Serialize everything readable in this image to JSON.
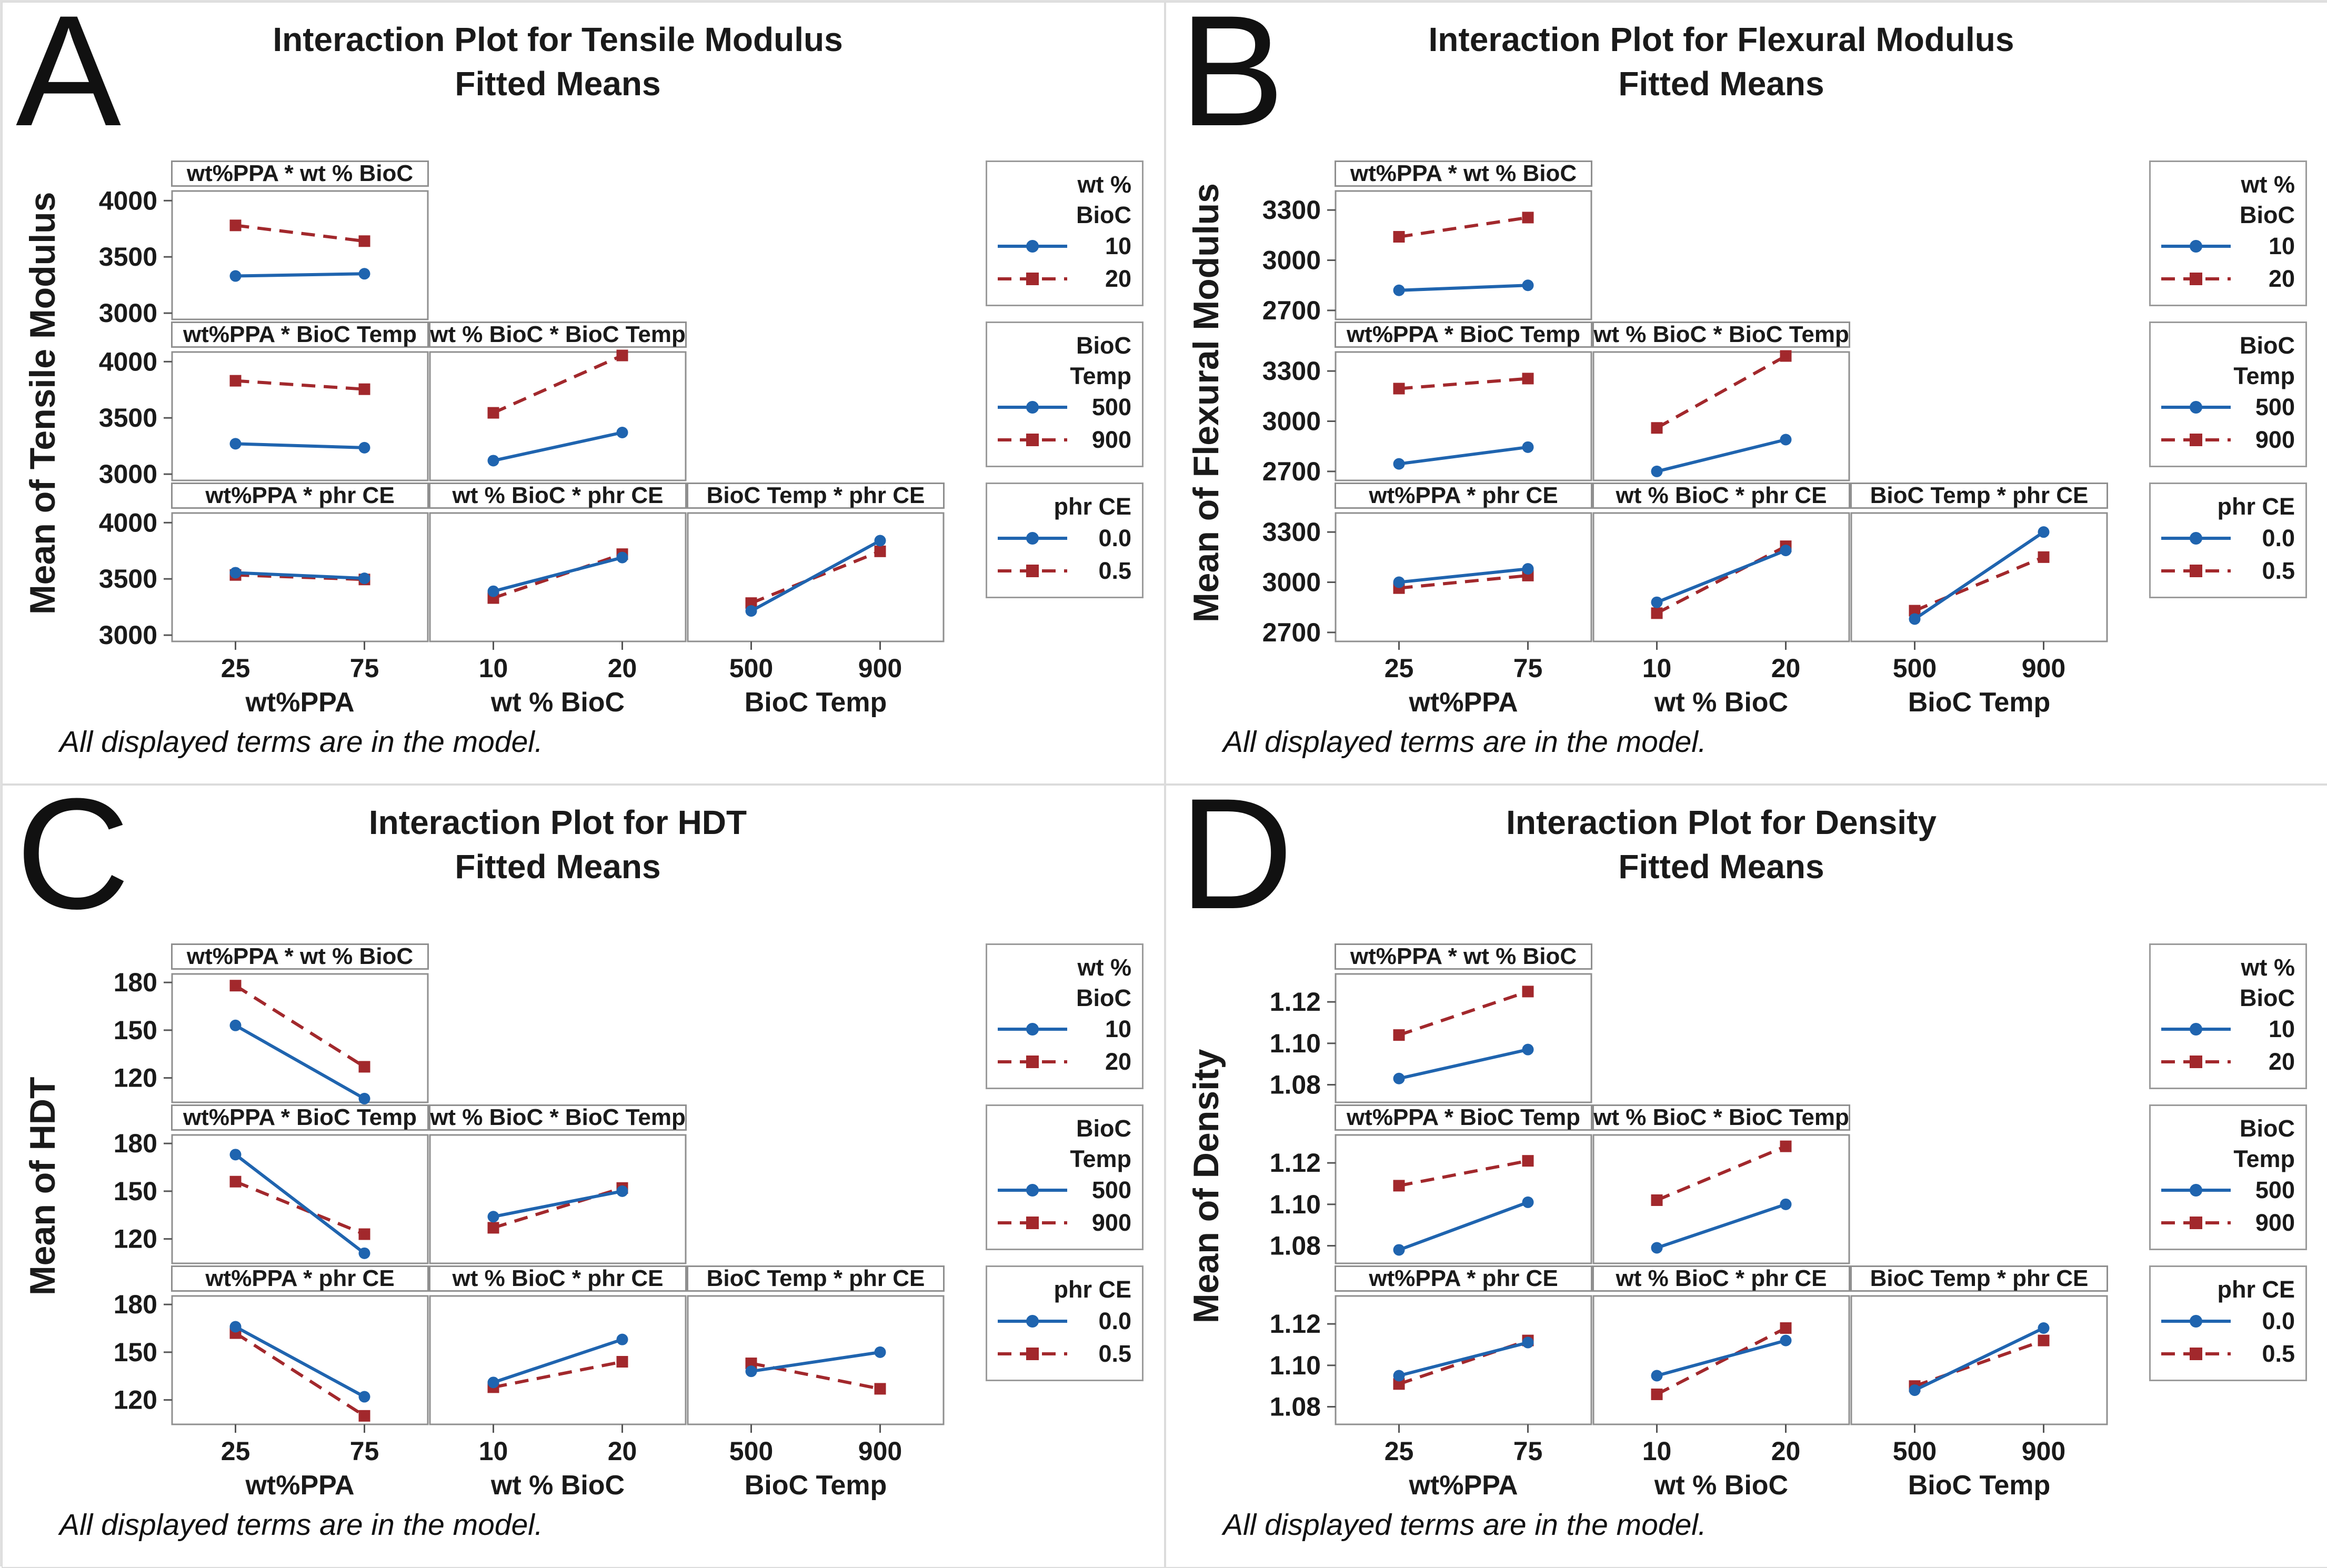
{
  "figure": {
    "footer_note": "All displayed terms are in the model.",
    "colors": {
      "blue": "#1f64af",
      "red": "#a2282c"
    }
  },
  "legend_defs": [
    {
      "title_lines": [
        "wt %",
        "BioC"
      ],
      "entries": [
        {
          "label": "10"
        },
        {
          "label": "20"
        }
      ]
    },
    {
      "title_lines": [
        "BioC",
        "Temp"
      ],
      "entries": [
        {
          "label": "500"
        },
        {
          "label": "900"
        }
      ]
    },
    {
      "title_lines": [
        "phr CE"
      ],
      "entries": [
        {
          "label": "0.0"
        },
        {
          "label": "0.5"
        }
      ]
    }
  ],
  "chart_data": [
    {
      "type": "line",
      "letter": "A",
      "title": "Interaction Plot for Tensile Modulus",
      "subtitle": "Fitted Means",
      "ylabel": "Mean of Tensile Modulus",
      "yticks": [
        "3000",
        "3500",
        "4000"
      ],
      "ylim": [
        2935,
        4095
      ],
      "xaxes": [
        {
          "label": "wt%PPA",
          "ticks": [
            "25",
            "75"
          ],
          "x_values": [
            25,
            75
          ]
        },
        {
          "label": "wt % BioC",
          "ticks": [
            "10",
            "20"
          ],
          "x_values": [
            10,
            20
          ]
        },
        {
          "label": "BioC Temp",
          "ticks": [
            "500",
            "900"
          ],
          "x_values": [
            500,
            900
          ]
        }
      ],
      "series_legend": {
        "blue_solid_circle": "first level",
        "red_dashed_square": "second level"
      },
      "subplots": [
        {
          "header": "wt%PPA * wt % BioC",
          "col": 0,
          "bottom": false,
          "series": {
            "blue": [
              3330,
              3350
            ],
            "red": [
              3780,
              3640
            ]
          }
        },
        {
          "header": "wt%PPA * BioC Temp",
          "col": 0,
          "bottom": false,
          "series": {
            "blue": [
              3270,
              3235
            ],
            "red": [
              3830,
              3755
            ]
          }
        },
        {
          "header": "wt % BioC * BioC Temp",
          "col": 1,
          "bottom": false,
          "series": {
            "blue": [
              3120,
              3370
            ],
            "red": [
              3545,
              4055
            ]
          }
        },
        {
          "header": "wt%PPA * phr CE",
          "col": 0,
          "bottom": true,
          "series": {
            "blue": [
              3555,
              3505
            ],
            "red": [
              3535,
              3495
            ]
          }
        },
        {
          "header": "wt % BioC * phr CE",
          "col": 1,
          "bottom": true,
          "series": {
            "blue": [
              3390,
              3690
            ],
            "red": [
              3330,
              3720
            ]
          }
        },
        {
          "header": "BioC Temp * phr CE",
          "col": 2,
          "bottom": true,
          "series": {
            "blue": [
              3215,
              3840
            ],
            "red": [
              3285,
              3745
            ]
          }
        }
      ]
    },
    {
      "type": "line",
      "letter": "B",
      "title": "Interaction Plot for Flexural Modulus",
      "subtitle": "Fitted Means",
      "ylabel": "Mean of Flexural Modulus",
      "yticks": [
        "2700",
        "3000",
        "3300"
      ],
      "ylim": [
        2640,
        3420
      ],
      "xaxes": [
        {
          "label": "wt%PPA",
          "ticks": [
            "25",
            "75"
          ],
          "x_values": [
            25,
            75
          ]
        },
        {
          "label": "wt % BioC",
          "ticks": [
            "10",
            "20"
          ],
          "x_values": [
            10,
            20
          ]
        },
        {
          "label": "BioC Temp",
          "ticks": [
            "500",
            "900"
          ],
          "x_values": [
            500,
            900
          ]
        }
      ],
      "subplots": [
        {
          "header": "wt%PPA * wt % BioC",
          "col": 0,
          "bottom": false,
          "series": {
            "blue": [
              2820,
              2850
            ],
            "red": [
              3140,
              3255
            ]
          }
        },
        {
          "header": "wt%PPA * BioC Temp",
          "col": 0,
          "bottom": false,
          "series": {
            "blue": [
              2745,
              2845
            ],
            "red": [
              3195,
              3255
            ]
          }
        },
        {
          "header": "wt % BioC * BioC Temp",
          "col": 1,
          "bottom": false,
          "series": {
            "blue": [
              2700,
              2890
            ],
            "red": [
              2960,
              3390
            ]
          }
        },
        {
          "header": "wt%PPA * phr CE",
          "col": 0,
          "bottom": true,
          "series": {
            "blue": [
              3000,
              3080
            ],
            "red": [
              2965,
              3040
            ]
          }
        },
        {
          "header": "wt % BioC * phr CE",
          "col": 1,
          "bottom": true,
          "series": {
            "blue": [
              2880,
              3190
            ],
            "red": [
              2815,
              3215
            ]
          }
        },
        {
          "header": "BioC Temp * phr CE",
          "col": 2,
          "bottom": true,
          "series": {
            "blue": [
              2780,
              3300
            ],
            "red": [
              2830,
              3150
            ]
          }
        }
      ]
    },
    {
      "type": "line",
      "letter": "C",
      "title": "Interaction Plot for HDT",
      "subtitle": "Fitted Means",
      "ylabel": "Mean of HDT",
      "yticks": [
        "120",
        "150",
        "180"
      ],
      "ylim": [
        104,
        186
      ],
      "xaxes": [
        {
          "label": "wt%PPA",
          "ticks": [
            "25",
            "75"
          ],
          "x_values": [
            25,
            75
          ]
        },
        {
          "label": "wt % BioC",
          "ticks": [
            "10",
            "20"
          ],
          "x_values": [
            10,
            20
          ]
        },
        {
          "label": "BioC Temp",
          "ticks": [
            "500",
            "900"
          ],
          "x_values": [
            500,
            900
          ]
        }
      ],
      "subplots": [
        {
          "header": "wt%PPA * wt % BioC",
          "col": 0,
          "bottom": false,
          "series": {
            "blue": [
              153,
              107
            ],
            "red": [
              178,
              127
            ]
          }
        },
        {
          "header": "wt%PPA * BioC Temp",
          "col": 0,
          "bottom": false,
          "series": {
            "blue": [
              173,
              111
            ],
            "red": [
              156,
              123
            ]
          }
        },
        {
          "header": "wt % BioC * BioC Temp",
          "col": 1,
          "bottom": false,
          "series": {
            "blue": [
              134,
              150
            ],
            "red": [
              127,
              152
            ]
          }
        },
        {
          "header": "wt%PPA * phr CE",
          "col": 0,
          "bottom": true,
          "series": {
            "blue": [
              166,
              122
            ],
            "red": [
              162,
              110
            ]
          }
        },
        {
          "header": "wt % BioC * phr CE",
          "col": 1,
          "bottom": true,
          "series": {
            "blue": [
              131,
              158
            ],
            "red": [
              128,
              144
            ]
          }
        },
        {
          "header": "BioC Temp * phr CE",
          "col": 2,
          "bottom": true,
          "series": {
            "blue": [
              138,
              150
            ],
            "red": [
              143,
              127
            ]
          }
        }
      ]
    },
    {
      "type": "line",
      "letter": "D",
      "title": "Interaction Plot for Density",
      "subtitle": "Fitted Means",
      "ylabel": "Mean of Density",
      "yticks": [
        "1.08",
        "1.10",
        "1.12"
      ],
      "ylim": [
        1.071,
        1.134
      ],
      "xaxes": [
        {
          "label": "wt%PPA",
          "ticks": [
            "25",
            "75"
          ],
          "x_values": [
            25,
            75
          ]
        },
        {
          "label": "wt % BioC",
          "ticks": [
            "10",
            "20"
          ],
          "x_values": [
            10,
            20
          ]
        },
        {
          "label": "BioC Temp",
          "ticks": [
            "500",
            "900"
          ],
          "x_values": [
            500,
            900
          ]
        }
      ],
      "subplots": [
        {
          "header": "wt%PPA * wt % BioC",
          "col": 0,
          "bottom": false,
          "series": {
            "blue": [
              1.083,
              1.097
            ],
            "red": [
              1.104,
              1.125
            ]
          }
        },
        {
          "header": "wt%PPA * BioC Temp",
          "col": 0,
          "bottom": false,
          "series": {
            "blue": [
              1.078,
              1.101
            ],
            "red": [
              1.109,
              1.121
            ]
          }
        },
        {
          "header": "wt % BioC * BioC Temp",
          "col": 1,
          "bottom": false,
          "series": {
            "blue": [
              1.079,
              1.1
            ],
            "red": [
              1.102,
              1.128
            ]
          }
        },
        {
          "header": "wt%PPA * phr CE",
          "col": 0,
          "bottom": true,
          "series": {
            "blue": [
              1.095,
              1.111
            ],
            "red": [
              1.091,
              1.112
            ]
          }
        },
        {
          "header": "wt % BioC * phr CE",
          "col": 1,
          "bottom": true,
          "series": {
            "blue": [
              1.095,
              1.112
            ],
            "red": [
              1.086,
              1.118
            ]
          }
        },
        {
          "header": "BioC Temp * phr CE",
          "col": 2,
          "bottom": true,
          "series": {
            "blue": [
              1.088,
              1.118
            ],
            "red": [
              1.09,
              1.112
            ]
          }
        }
      ]
    }
  ]
}
